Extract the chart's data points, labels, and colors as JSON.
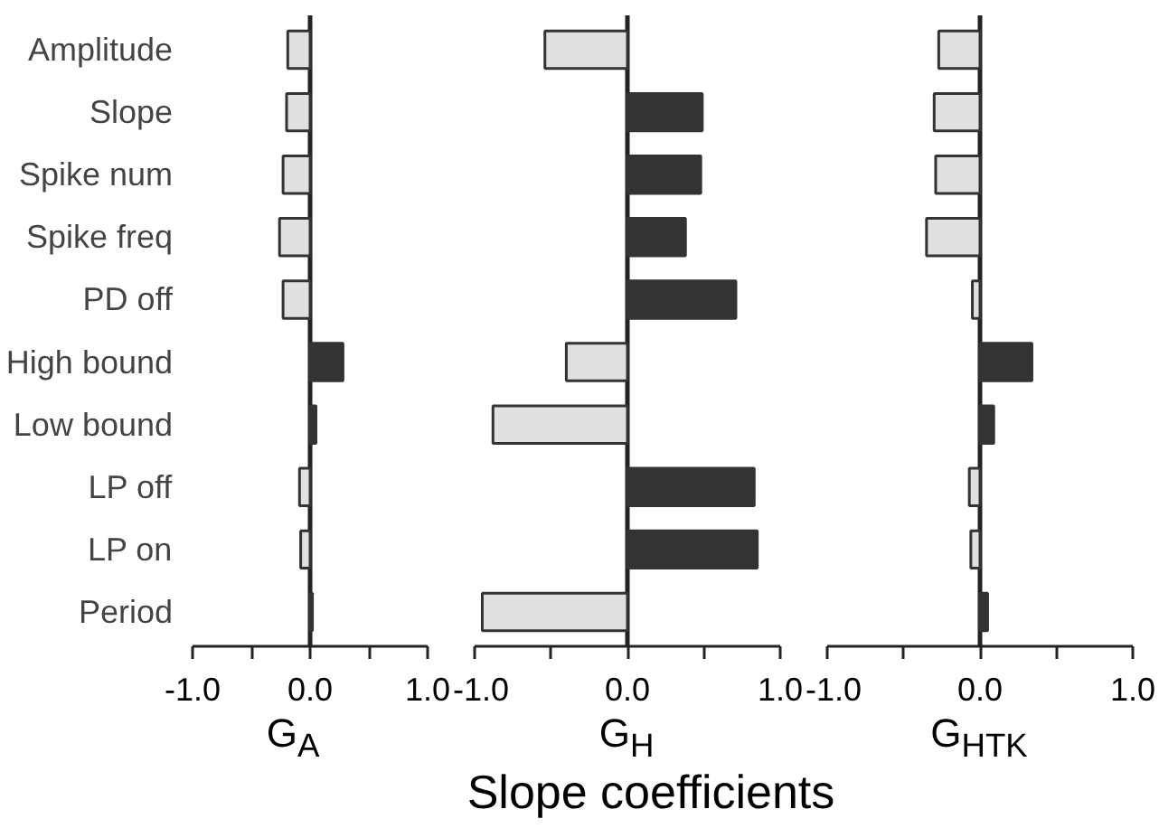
{
  "chart_data": [
    {
      "type": "bar",
      "orientation": "horizontal",
      "xlabel": "G$_{A}$",
      "categories": [
        "Amplitude",
        "Slope",
        "Spike num",
        "Spike freq",
        "PD off",
        "High bound",
        "Low bound",
        "LP off",
        "LP on",
        "Period"
      ],
      "values": [
        -0.19,
        -0.2,
        -0.23,
        -0.26,
        -0.23,
        0.28,
        0.05,
        -0.09,
        -0.08,
        0.02
      ],
      "colors": [
        "#e0e0e0",
        "#e0e0e0",
        "#e0e0e0",
        "#e0e0e0",
        "#e0e0e0",
        "#333333",
        "#333333",
        "#e0e0e0",
        "#e0e0e0",
        "#333333"
      ],
      "xlim": [
        -1,
        1
      ],
      "xticks": [
        {
          "value": -1,
          "label": "-1.0"
        },
        {
          "value": -0.5,
          "label": null
        },
        {
          "value": 0,
          "label": "0.0"
        },
        {
          "value": 0.5,
          "label": null
        },
        {
          "value": 1,
          "label": "1.0"
        }
      ],
      "ref_lines": [
        {
          "axis": "x",
          "value": 0,
          "label": null,
          "color": "#222222"
        }
      ],
      "grid": false
    },
    {
      "type": "bar",
      "orientation": "horizontal",
      "xlabel": "G$_{H}$",
      "tick_labels": "x",
      "categories": [
        "Amplitude",
        "Slope",
        "Spike num",
        "Spike freq",
        "PD off",
        "High bound",
        "Low bound",
        "LP off",
        "LP on",
        "Period"
      ],
      "values": [
        -0.54,
        0.49,
        0.48,
        0.38,
        0.71,
        -0.4,
        -0.88,
        0.83,
        0.85,
        -0.95
      ],
      "colors": [
        "#e0e0e0",
        "#333333",
        "#333333",
        "#333333",
        "#333333",
        "#e0e0e0",
        "#e0e0e0",
        "#333333",
        "#333333",
        "#e0e0e0"
      ],
      "xlim": [
        -1,
        1
      ],
      "xticks": [
        {
          "value": -1,
          "label": "-1.0"
        },
        {
          "value": -0.5,
          "label": null
        },
        {
          "value": 0,
          "label": "0.0"
        },
        {
          "value": 0.5,
          "label": null
        },
        {
          "value": 1,
          "label": "1.0"
        }
      ],
      "ref_lines": [
        {
          "axis": "x",
          "value": 0,
          "label": null,
          "color": "#222222"
        }
      ],
      "grid": false,
      "annotations": [
        "Slope coefficients"
      ]
    },
    {
      "type": "bar",
      "orientation": "horizontal",
      "xlabel": "G$_{HTK}$",
      "tick_labels": "x",
      "categories": [
        "Amplitude",
        "Slope",
        "Spike num",
        "Spike freq",
        "PD off",
        "High bound",
        "Low bound",
        "LP off",
        "LP on",
        "Period"
      ],
      "values": [
        -0.27,
        -0.3,
        -0.29,
        -0.35,
        -0.05,
        0.34,
        0.09,
        -0.07,
        -0.06,
        0.05
      ],
      "colors": [
        "#e0e0e0",
        "#e0e0e0",
        "#e0e0e0",
        "#e0e0e0",
        "#e0e0e0",
        "#333333",
        "#333333",
        "#e0e0e0",
        "#e0e0e0",
        "#333333"
      ],
      "xlim": [
        -1,
        1
      ],
      "xticks": [
        {
          "value": -1,
          "label": "-1.0"
        },
        {
          "value": -0.5,
          "label": null
        },
        {
          "value": 0,
          "label": "0.0"
        },
        {
          "value": 0.5,
          "label": null
        },
        {
          "value": 1,
          "label": "1.0"
        }
      ],
      "ref_lines": [
        {
          "axis": "x",
          "value": 0,
          "label": null,
          "color": "#222222"
        }
      ],
      "grid": false
    }
  ]
}
